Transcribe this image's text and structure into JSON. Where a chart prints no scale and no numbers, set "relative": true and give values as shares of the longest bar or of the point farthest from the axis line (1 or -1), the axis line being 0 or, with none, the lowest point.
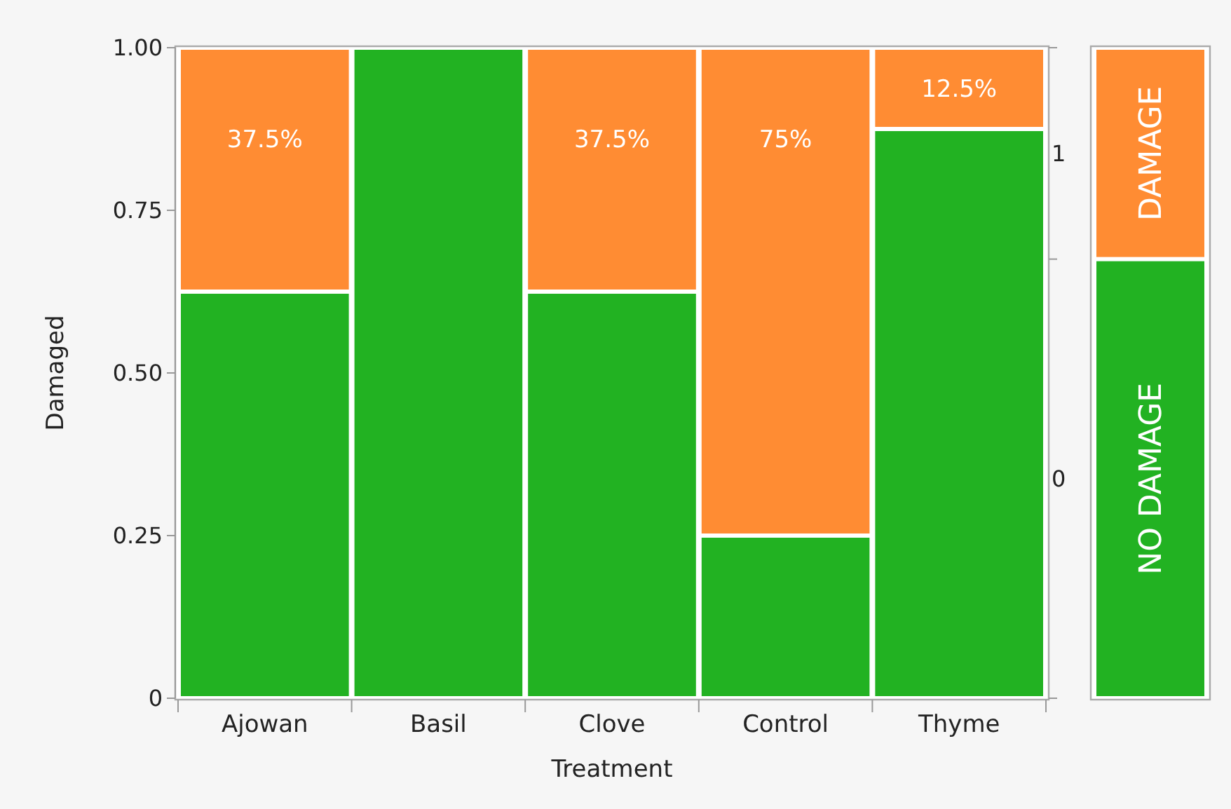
{
  "chart_data": [
    {
      "type": "bar",
      "stacked": true,
      "xlabel": "Treatment",
      "ylabel": "Damaged",
      "categories": [
        "Ajowan",
        "Basil",
        "Clove",
        "Control",
        "Thyme"
      ],
      "series": [
        {
          "color": "#22b222",
          "values": [
            0.625,
            1,
            0.625,
            0.25,
            0.875
          ]
        },
        {
          "color": "#ff8c33",
          "values": [
            0.375,
            0,
            0.375,
            0.75,
            0.125
          ],
          "value_labels": [
            "37.5%",
            null,
            "37.5%",
            "75%",
            "12.5%"
          ]
        }
      ],
      "ylim": [
        0,
        1
      ],
      "yticks": [
        0,
        {
          "value": 0.25,
          "label": "0.25"
        },
        {
          "value": 0.5,
          "label": "0.50"
        },
        {
          "value": 0.75,
          "label": "0.75"
        },
        {
          "value": 1,
          "label": "1.00"
        }
      ],
      "y2lim": [
        0,
        1
      ],
      "y2ticks": [
        {
          "value": 0,
          "label": null
        },
        {
          "value": 0.3375,
          "label": "0"
        },
        {
          "value": 0.675,
          "label": null
        },
        {
          "value": 0.8375,
          "label": "1"
        },
        {
          "value": 1,
          "label": null
        }
      ]
    },
    {
      "type": "bar",
      "stacked": true,
      "relative": true,
      "tick_labels": false,
      "categories": [
        null
      ],
      "series": [
        {
          "name": "NO DAMAGE",
          "color": "#22b222",
          "values": [
            0.675
          ]
        },
        {
          "name": "DAMAGE",
          "color": "#ff8c33",
          "values": [
            0.325
          ]
        }
      ]
    }
  ]
}
